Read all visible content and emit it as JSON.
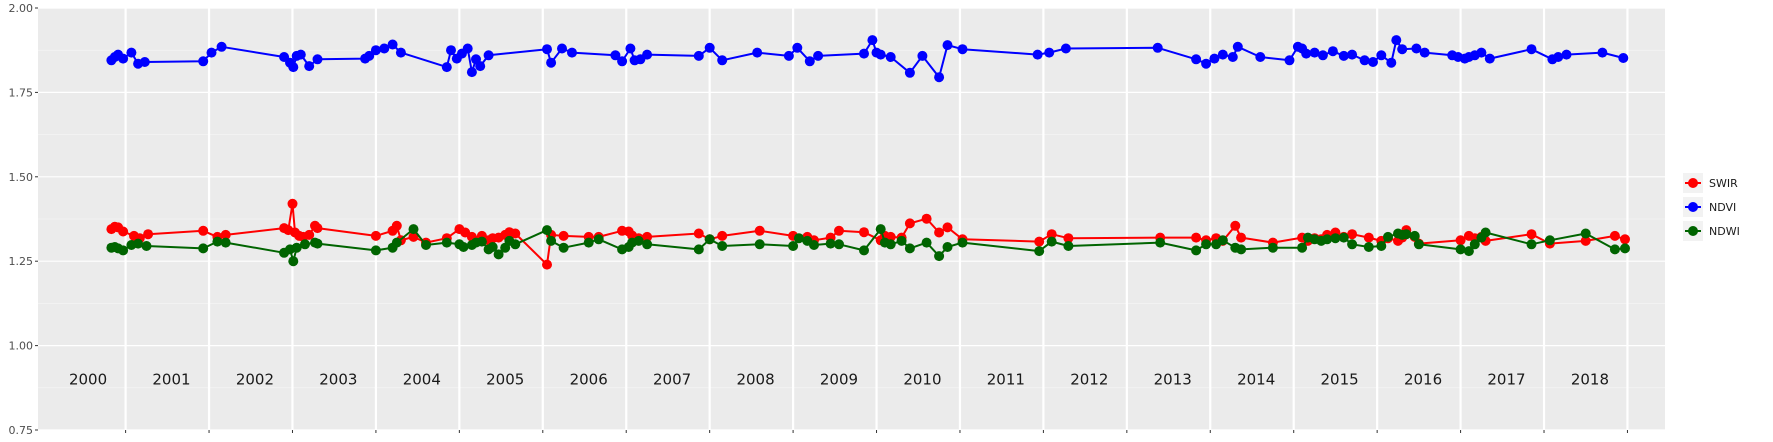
{
  "chart_data": {
    "type": "line",
    "title": "",
    "xlabel": "",
    "ylabel": "",
    "ylim": [
      0.75,
      2.0
    ],
    "xlim": [
      1999.4,
      2018.9
    ],
    "grid": true,
    "background": "#ebebeb",
    "legend_position": "right",
    "y_ticks": [
      "0.75",
      "1.00",
      "1.25",
      "1.50",
      "1.75",
      "2.00"
    ],
    "year_labels": [
      "2000",
      "2001",
      "2002",
      "2003",
      "2004",
      "2005",
      "2006",
      "2007",
      "2008",
      "2009",
      "2010",
      "2011",
      "2012",
      "2013",
      "2014",
      "2015",
      "2016",
      "2017",
      "2018"
    ],
    "year_boundaries": [
      2000.45,
      2001.45,
      2002.45,
      2003.45,
      2004.45,
      2005.45,
      2006.45,
      2007.45,
      2008.45,
      2009.45,
      2010.45,
      2011.45,
      2012.45,
      2013.45,
      2014.45,
      2015.45,
      2016.45,
      2017.45,
      2018.45
    ],
    "series": [
      {
        "name": "SWIR",
        "color": "#ff0000",
        "x": [
          2000.28,
          2000.32,
          2000.36,
          2000.42,
          2000.55,
          2000.62,
          2000.72,
          2001.38,
          2001.55,
          2001.65,
          2002.35,
          2002.4,
          2002.45,
          2002.48,
          2002.53,
          2002.58,
          2002.65,
          2002.72,
          2002.75,
          2003.45,
          2003.65,
          2003.7,
          2003.75,
          2003.9,
          2004.05,
          2004.3,
          2004.45,
          2004.52,
          2004.6,
          2004.65,
          2004.72,
          2004.8,
          2004.85,
          2004.92,
          2005.0,
          2005.05,
          2005.12,
          2005.5,
          2005.55,
          2005.7,
          2006.0,
          2006.12,
          2006.4,
          2006.48,
          2006.52,
          2006.6,
          2006.7,
          2007.32,
          2007.45,
          2007.6,
          2008.05,
          2008.45,
          2008.62,
          2008.7,
          2008.9,
          2009.0,
          2009.3,
          2009.5,
          2009.55,
          2009.62,
          2009.75,
          2009.85,
          2010.05,
          2010.2,
          2010.3,
          2010.48,
          2011.4,
          2011.55,
          2011.75,
          2012.85,
          2013.28,
          2013.4,
          2013.52,
          2013.6,
          2013.75,
          2013.82,
          2014.2,
          2014.55,
          2014.62,
          2014.7,
          2014.78,
          2014.85,
          2014.95,
          2015.05,
          2015.15,
          2015.35,
          2015.5,
          2015.58,
          2015.7,
          2015.75,
          2015.8,
          2015.9,
          2015.95,
          2016.45,
          2016.55,
          2016.62,
          2016.7,
          2016.75,
          2017.3,
          2017.52,
          2017.95,
          2018.3,
          2018.42
        ],
        "values": [
          1.345,
          1.352,
          1.35,
          1.338,
          1.325,
          1.318,
          1.33,
          1.34,
          1.322,
          1.328,
          1.348,
          1.342,
          1.42,
          1.335,
          1.325,
          1.322,
          1.328,
          1.355,
          1.348,
          1.325,
          1.34,
          1.355,
          1.312,
          1.322,
          1.305,
          1.318,
          1.345,
          1.335,
          1.322,
          1.31,
          1.325,
          1.312,
          1.318,
          1.32,
          1.328,
          1.336,
          1.332,
          1.24,
          1.328,
          1.325,
          1.322,
          1.322,
          1.34,
          1.338,
          1.326,
          1.318,
          1.322,
          1.332,
          1.315,
          1.325,
          1.34,
          1.325,
          1.322,
          1.312,
          1.32,
          1.34,
          1.336,
          1.312,
          1.325,
          1.322,
          1.32,
          1.362,
          1.376,
          1.335,
          1.35,
          1.315,
          1.308,
          1.33,
          1.318,
          1.32,
          1.32,
          1.312,
          1.318,
          1.31,
          1.355,
          1.32,
          1.305,
          1.32,
          1.31,
          1.318,
          1.315,
          1.328,
          1.335,
          1.322,
          1.33,
          1.32,
          1.31,
          1.318,
          1.31,
          1.32,
          1.342,
          1.322,
          1.302,
          1.312,
          1.325,
          1.318,
          1.322,
          1.31,
          1.33,
          1.302,
          1.31,
          1.325,
          1.315
        ]
      },
      {
        "name": "NDVI",
        "color": "#0000ff",
        "x": [
          2000.28,
          2000.32,
          2000.36,
          2000.42,
          2000.52,
          2000.6,
          2000.68,
          2001.38,
          2001.48,
          2001.6,
          2002.35,
          2002.42,
          2002.46,
          2002.5,
          2002.55,
          2002.65,
          2002.75,
          2003.32,
          2003.37,
          2003.45,
          2003.55,
          2003.65,
          2003.75,
          2004.3,
          2004.35,
          2004.42,
          2004.48,
          2004.55,
          2004.6,
          2004.65,
          2004.7,
          2004.8,
          2005.5,
          2005.55,
          2005.68,
          2005.8,
          2006.32,
          2006.4,
          2006.5,
          2006.55,
          2006.62,
          2006.7,
          2007.32,
          2007.45,
          2007.6,
          2008.02,
          2008.4,
          2008.5,
          2008.65,
          2008.75,
          2009.3,
          2009.4,
          2009.45,
          2009.5,
          2009.62,
          2009.85,
          2010.0,
          2010.2,
          2010.3,
          2010.48,
          2011.38,
          2011.52,
          2011.72,
          2012.82,
          2013.28,
          2013.4,
          2013.5,
          2013.6,
          2013.72,
          2013.78,
          2014.05,
          2014.4,
          2014.5,
          2014.55,
          2014.6,
          2014.7,
          2014.8,
          2014.92,
          2015.05,
          2015.15,
          2015.3,
          2015.4,
          2015.5,
          2015.62,
          2015.68,
          2015.75,
          2015.92,
          2016.02,
          2016.35,
          2016.42,
          2016.5,
          2016.55,
          2016.62,
          2016.7,
          2016.8,
          2017.3,
          2017.55,
          2017.62,
          2017.72,
          2018.15,
          2018.4
        ],
        "values": [
          1.845,
          1.855,
          1.862,
          1.85,
          1.868,
          1.835,
          1.84,
          1.842,
          1.868,
          1.885,
          1.855,
          1.838,
          1.825,
          1.858,
          1.862,
          1.828,
          1.848,
          1.85,
          1.858,
          1.875,
          1.88,
          1.892,
          1.868,
          1.825,
          1.875,
          1.85,
          1.865,
          1.88,
          1.81,
          1.848,
          1.828,
          1.86,
          1.878,
          1.838,
          1.88,
          1.868,
          1.86,
          1.842,
          1.88,
          1.845,
          1.848,
          1.862,
          1.858,
          1.882,
          1.845,
          1.868,
          1.858,
          1.882,
          1.842,
          1.858,
          1.865,
          1.905,
          1.868,
          1.862,
          1.855,
          1.808,
          1.858,
          1.795,
          1.89,
          1.878,
          1.862,
          1.868,
          1.88,
          1.882,
          1.848,
          1.835,
          1.85,
          1.862,
          1.855,
          1.885,
          1.855,
          1.845,
          1.885,
          1.88,
          1.865,
          1.868,
          1.86,
          1.872,
          1.858,
          1.862,
          1.845,
          1.84,
          1.86,
          1.838,
          1.905,
          1.878,
          1.88,
          1.868,
          1.86,
          1.855,
          1.85,
          1.855,
          1.86,
          1.868,
          1.85,
          1.878,
          1.848,
          1.855,
          1.862,
          1.868,
          1.852
        ]
      },
      {
        "name": "NDWI",
        "color": "#006400",
        "x": [
          2000.28,
          2000.32,
          2000.36,
          2000.42,
          2000.52,
          2000.6,
          2000.7,
          2001.38,
          2001.55,
          2001.65,
          2002.35,
          2002.42,
          2002.46,
          2002.5,
          2002.6,
          2002.72,
          2002.75,
          2003.45,
          2003.65,
          2003.7,
          2003.9,
          2004.05,
          2004.3,
          2004.45,
          2004.5,
          2004.6,
          2004.65,
          2004.72,
          2004.8,
          2004.85,
          2004.92,
          2005.0,
          2005.05,
          2005.12,
          2005.5,
          2005.55,
          2005.7,
          2006.0,
          2006.12,
          2006.4,
          2006.48,
          2006.52,
          2006.6,
          2006.7,
          2007.32,
          2007.45,
          2007.6,
          2008.05,
          2008.45,
          2008.52,
          2008.62,
          2008.7,
          2008.9,
          2009.0,
          2009.3,
          2009.5,
          2009.55,
          2009.62,
          2009.75,
          2009.85,
          2010.05,
          2010.2,
          2010.3,
          2010.48,
          2011.4,
          2011.55,
          2011.75,
          2012.85,
          2013.28,
          2013.4,
          2013.52,
          2013.6,
          2013.75,
          2013.82,
          2014.2,
          2014.55,
          2014.62,
          2014.7,
          2014.78,
          2014.85,
          2014.95,
          2015.05,
          2015.15,
          2015.35,
          2015.5,
          2015.58,
          2015.7,
          2015.75,
          2015.8,
          2015.9,
          2015.95,
          2016.45,
          2016.55,
          2016.62,
          2016.7,
          2016.75,
          2017.3,
          2017.52,
          2017.95,
          2018.3,
          2018.42
        ],
        "values": [
          1.29,
          1.292,
          1.288,
          1.282,
          1.298,
          1.302,
          1.295,
          1.288,
          1.308,
          1.305,
          1.275,
          1.285,
          1.25,
          1.29,
          1.3,
          1.305,
          1.302,
          1.282,
          1.29,
          1.305,
          1.345,
          1.298,
          1.305,
          1.3,
          1.292,
          1.298,
          1.305,
          1.308,
          1.285,
          1.292,
          1.27,
          1.29,
          1.31,
          1.3,
          1.342,
          1.31,
          1.29,
          1.305,
          1.315,
          1.285,
          1.292,
          1.305,
          1.31,
          1.3,
          1.285,
          1.315,
          1.295,
          1.3,
          1.295,
          1.318,
          1.31,
          1.298,
          1.302,
          1.3,
          1.282,
          1.345,
          1.305,
          1.3,
          1.31,
          1.288,
          1.305,
          1.265,
          1.292,
          1.305,
          1.28,
          1.308,
          1.295,
          1.305,
          1.282,
          1.3,
          1.3,
          1.312,
          1.29,
          1.285,
          1.29,
          1.29,
          1.32,
          1.315,
          1.31,
          1.315,
          1.318,
          1.32,
          1.3,
          1.292,
          1.295,
          1.322,
          1.332,
          1.328,
          1.33,
          1.325,
          1.3,
          1.285,
          1.28,
          1.3,
          1.32,
          1.335,
          1.3,
          1.312,
          1.332,
          1.285,
          1.288
        ]
      }
    ]
  }
}
